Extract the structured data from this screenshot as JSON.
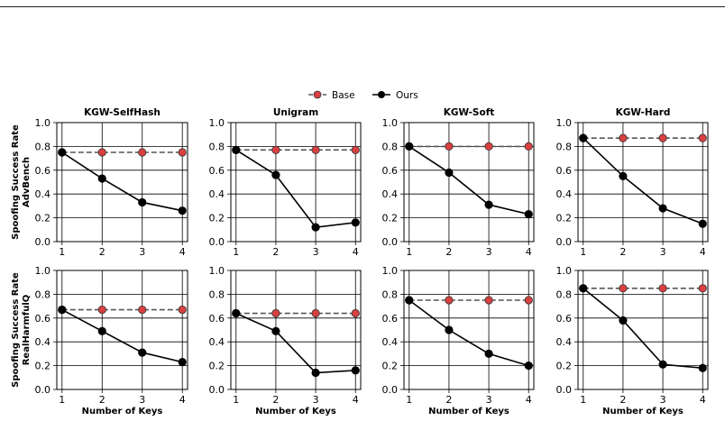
{
  "legend": {
    "base_label": "Base",
    "ours_label": "Ours"
  },
  "colors": {
    "base_marker": "#d94040",
    "base_line": "#555555",
    "ours": "#000000",
    "grid": "#000000"
  },
  "chart_data": {
    "type": "line",
    "x": [
      1,
      2,
      3,
      4
    ],
    "xticks": [
      "1",
      "2",
      "3",
      "4"
    ],
    "yticks": [
      "0.0",
      "0.2",
      "0.4",
      "0.6",
      "0.8",
      "1.0"
    ],
    "ylim": [
      0,
      1.0
    ],
    "grid": true,
    "legend_position": "top-center",
    "xlabel": "Number of Keys",
    "rows": [
      {
        "ylabel": [
          "Spoofing Success Rate",
          "AdvBench"
        ]
      },
      {
        "ylabel": [
          "Spoofing Success Rate",
          "RealHarmfulQ"
        ]
      }
    ],
    "columns": [
      "KGW-SelfHash",
      "Unigram",
      "KGW-Soft",
      "KGW-Hard"
    ],
    "panels": [
      {
        "title": "KGW-SelfHash",
        "row": 0,
        "col": 0,
        "series": [
          {
            "name": "Base",
            "values": [
              0.75,
              0.75,
              0.75,
              0.75
            ]
          },
          {
            "name": "Ours",
            "values": [
              0.75,
              0.53,
              0.33,
              0.26
            ]
          }
        ]
      },
      {
        "title": "Unigram",
        "row": 0,
        "col": 1,
        "series": [
          {
            "name": "Base",
            "values": [
              0.77,
              0.77,
              0.77,
              0.77
            ]
          },
          {
            "name": "Ours",
            "values": [
              0.77,
              0.56,
              0.12,
              0.16
            ]
          }
        ]
      },
      {
        "title": "KGW-Soft",
        "row": 0,
        "col": 2,
        "series": [
          {
            "name": "Base",
            "values": [
              0.8,
              0.8,
              0.8,
              0.8
            ]
          },
          {
            "name": "Ours",
            "values": [
              0.8,
              0.58,
              0.31,
              0.23
            ]
          }
        ]
      },
      {
        "title": "KGW-Hard",
        "row": 0,
        "col": 3,
        "series": [
          {
            "name": "Base",
            "values": [
              0.87,
              0.87,
              0.87,
              0.87
            ]
          },
          {
            "name": "Ours",
            "values": [
              0.87,
              0.55,
              0.28,
              0.15
            ]
          }
        ]
      },
      {
        "title": "",
        "row": 1,
        "col": 0,
        "series": [
          {
            "name": "Base",
            "values": [
              0.67,
              0.67,
              0.67,
              0.67
            ]
          },
          {
            "name": "Ours",
            "values": [
              0.67,
              0.49,
              0.31,
              0.23
            ]
          }
        ]
      },
      {
        "title": "",
        "row": 1,
        "col": 1,
        "series": [
          {
            "name": "Base",
            "values": [
              0.64,
              0.64,
              0.64,
              0.64
            ]
          },
          {
            "name": "Ours",
            "values": [
              0.64,
              0.49,
              0.14,
              0.16
            ]
          }
        ]
      },
      {
        "title": "",
        "row": 1,
        "col": 2,
        "series": [
          {
            "name": "Base",
            "values": [
              0.75,
              0.75,
              0.75,
              0.75
            ]
          },
          {
            "name": "Ours",
            "values": [
              0.75,
              0.5,
              0.3,
              0.2
            ]
          }
        ]
      },
      {
        "title": "",
        "row": 1,
        "col": 3,
        "series": [
          {
            "name": "Base",
            "values": [
              0.85,
              0.85,
              0.85,
              0.85
            ]
          },
          {
            "name": "Ours",
            "values": [
              0.85,
              0.58,
              0.21,
              0.18
            ]
          }
        ]
      }
    ]
  }
}
